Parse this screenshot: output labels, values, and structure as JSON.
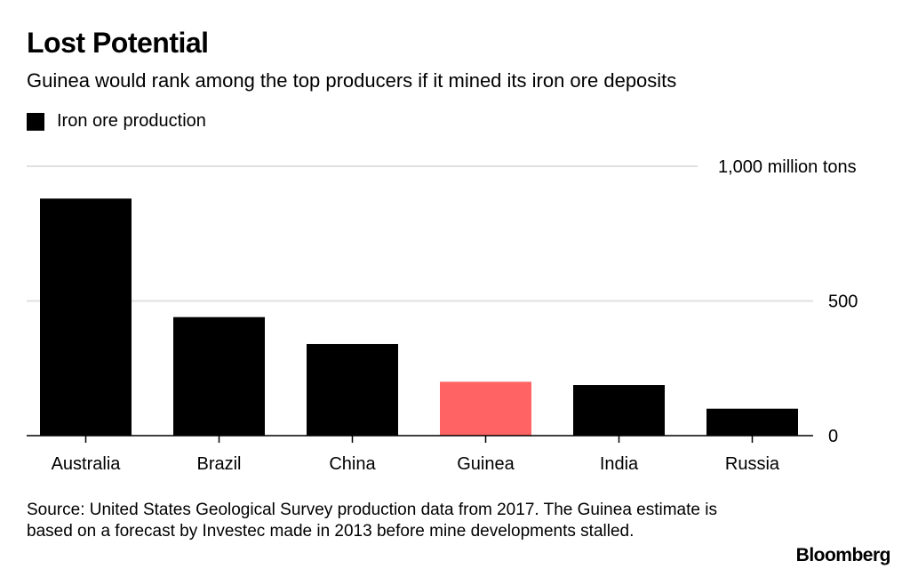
{
  "title": "Lost Potential",
  "subtitle": "Guinea would rank among the top producers if it mined its iron ore deposits",
  "legend": {
    "label": "Iron ore production"
  },
  "source": "Source: United States Geological Survey production data from 2017. The Guinea estimate is based on a forecast by Investec made in 2013 before mine developments stalled.",
  "logo": "Bloomberg",
  "colors": {
    "default": "#000000",
    "highlight": "#ff6363",
    "grid": "#e0e0e0"
  },
  "chart_data": {
    "type": "bar",
    "categories": [
      "Australia",
      "Brazil",
      "China",
      "Guinea",
      "India",
      "Russia"
    ],
    "series": [
      {
        "name": "Iron ore production",
        "values": [
          880,
          440,
          340,
          200,
          188,
          100
        ]
      }
    ],
    "highlight": "Guinea",
    "ylim": [
      0,
      1000
    ],
    "yticks": [
      0,
      500,
      1000
    ],
    "ytick_labels": [
      "0",
      "500",
      "1,000 million tons"
    ],
    "grid": true,
    "legend_position": "top-left"
  }
}
